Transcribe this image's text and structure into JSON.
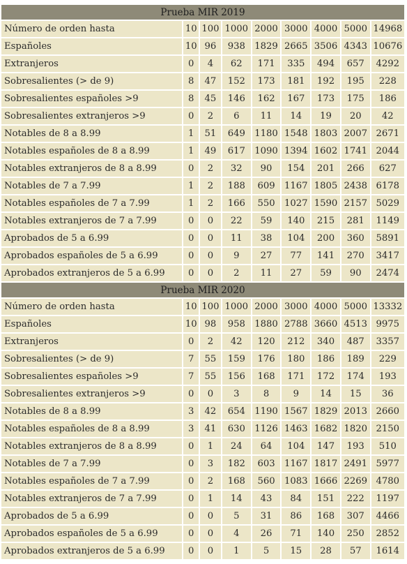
{
  "tables": [
    {
      "title": "Prueba MIR 2019",
      "rows": [
        {
          "label": "Número de orden hasta",
          "values": [
            "10",
            "100",
            "1000",
            "2000",
            "3000",
            "4000",
            "5000",
            "14968"
          ]
        },
        {
          "label": "Españoles",
          "values": [
            "10",
            "96",
            "938",
            "1829",
            "2665",
            "3506",
            "4343",
            "10676"
          ]
        },
        {
          "label": "Extranjeros",
          "values": [
            "0",
            "4",
            "62",
            "171",
            "335",
            "494",
            "657",
            "4292"
          ]
        },
        {
          "label": "Sobresalientes (> de 9)",
          "values": [
            "8",
            "47",
            "152",
            "173",
            "181",
            "192",
            "195",
            "228"
          ]
        },
        {
          "label": "Sobresalientes españoles >9",
          "values": [
            "8",
            "45",
            "146",
            "162",
            "167",
            "173",
            "175",
            "186"
          ]
        },
        {
          "label": "Sobresalientes extranjeros >9",
          "values": [
            "0",
            "2",
            "6",
            "11",
            "14",
            "19",
            "20",
            "42"
          ]
        },
        {
          "label": "Notables de 8 a 8.99",
          "values": [
            "1",
            "51",
            "649",
            "1180",
            "1548",
            "1803",
            "2007",
            "2671"
          ]
        },
        {
          "label": "Notables españoles de 8 a 8.99",
          "values": [
            "1",
            "49",
            "617",
            "1090",
            "1394",
            "1602",
            "1741",
            "2044"
          ]
        },
        {
          "label": "Notables extranjeros de 8 a 8.99",
          "values": [
            "0",
            "2",
            "32",
            "90",
            "154",
            "201",
            "266",
            "627"
          ]
        },
        {
          "label": "Notables de 7 a 7.99",
          "values": [
            "1",
            "2",
            "188",
            "609",
            "1167",
            "1805",
            "2438",
            "6178"
          ]
        },
        {
          "label": "Notables españoles de 7 a 7.99",
          "values": [
            "1",
            "2",
            "166",
            "550",
            "1027",
            "1590",
            "2157",
            "5029"
          ]
        },
        {
          "label": "Notables extranjeros de 7 a 7.99",
          "values": [
            "0",
            "0",
            "22",
            "59",
            "140",
            "215",
            "281",
            "1149"
          ]
        },
        {
          "label": "Aprobados de 5 a 6.99",
          "values": [
            "0",
            "0",
            "11",
            "38",
            "104",
            "200",
            "360",
            "5891"
          ]
        },
        {
          "label": "Aprobados españoles de 5 a 6.99",
          "values": [
            "0",
            "0",
            "9",
            "27",
            "77",
            "141",
            "270",
            "3417"
          ]
        },
        {
          "label": "Aprobados extranjeros de 5 a 6.99",
          "values": [
            "0",
            "0",
            "2",
            "11",
            "27",
            "59",
            "90",
            "2474"
          ]
        }
      ]
    },
    {
      "title": "Prueba MIR 2020",
      "rows": [
        {
          "label": "Número de orden hasta",
          "values": [
            "10",
            "100",
            "1000",
            "2000",
            "3000",
            "4000",
            "5000",
            "13332"
          ]
        },
        {
          "label": "Españoles",
          "values": [
            "10",
            "98",
            "958",
            "1880",
            "2788",
            "3660",
            "4513",
            "9975"
          ]
        },
        {
          "label": "Extranjeros",
          "values": [
            "0",
            "2",
            "42",
            "120",
            "212",
            "340",
            "487",
            "3357"
          ]
        },
        {
          "label": "Sobresalientes (> de 9)",
          "values": [
            "7",
            "55",
            "159",
            "176",
            "180",
            "186",
            "189",
            "229"
          ]
        },
        {
          "label": "Sobresalientes españoles >9",
          "values": [
            "7",
            "55",
            "156",
            "168",
            "171",
            "172",
            "174",
            "193"
          ]
        },
        {
          "label": "Sobresalientes extranjeros >9",
          "values": [
            "0",
            "0",
            "3",
            "8",
            "9",
            "14",
            "15",
            "36"
          ]
        },
        {
          "label": "Notables de 8 a 8.99",
          "values": [
            "3",
            "42",
            "654",
            "1190",
            "1567",
            "1829",
            "2013",
            "2660"
          ]
        },
        {
          "label": "Notables españoles de 8 a 8.99",
          "values": [
            "3",
            "41",
            "630",
            "1126",
            "1463",
            "1682",
            "1820",
            "2150"
          ]
        },
        {
          "label": "Notables extranjeros de 8 a 8.99",
          "values": [
            "0",
            "1",
            "24",
            "64",
            "104",
            "147",
            "193",
            "510"
          ]
        },
        {
          "label": "Notables de 7 a 7.99",
          "values": [
            "0",
            "3",
            "182",
            "603",
            "1167",
            "1817",
            "2491",
            "5977"
          ]
        },
        {
          "label": "Notables españoles de 7 a 7.99",
          "values": [
            "0",
            "2",
            "168",
            "560",
            "1083",
            "1666",
            "2269",
            "4780"
          ]
        },
        {
          "label": "Notables extranjeros de 7 a 7.99",
          "values": [
            "0",
            "1",
            "14",
            "43",
            "84",
            "151",
            "222",
            "1197"
          ]
        },
        {
          "label": "Aprobados de 5 a 6.99",
          "values": [
            "0",
            "0",
            "5",
            "31",
            "86",
            "168",
            "307",
            "4466"
          ]
        },
        {
          "label": "Aprobados españoles de 5 a 6.99",
          "values": [
            "0",
            "0",
            "4",
            "26",
            "71",
            "140",
            "250",
            "2852"
          ]
        },
        {
          "label": "Aprobados extranjeros de 5 a 6.99",
          "values": [
            "0",
            "0",
            "1",
            "5",
            "15",
            "28",
            "57",
            "1614"
          ]
        }
      ]
    }
  ]
}
